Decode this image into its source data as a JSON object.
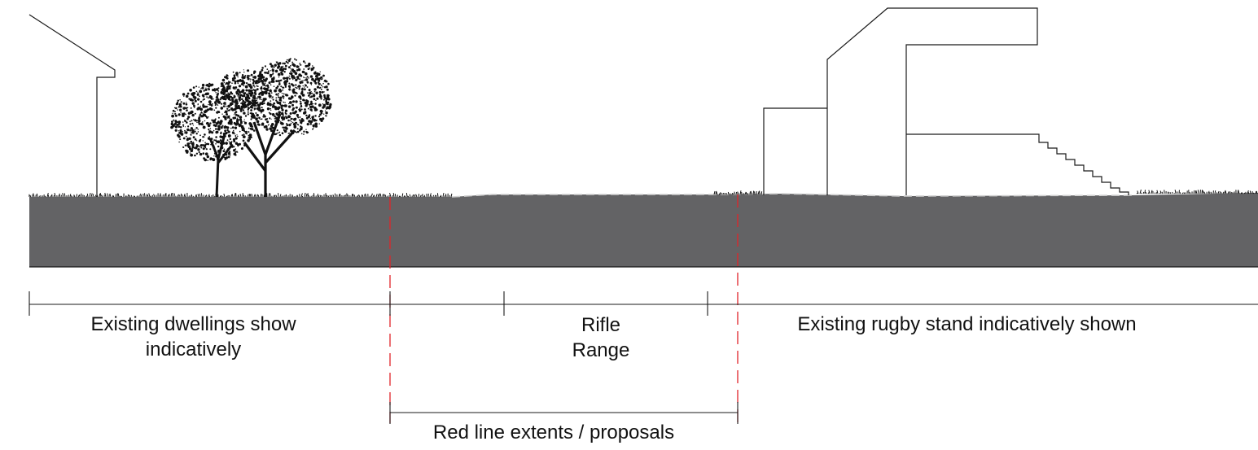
{
  "labels": {
    "dwellings": "Existing dwellings show\nindicatively",
    "rifle_range": "Rifle\nRange",
    "rugby_stand": "Existing rugby stand indicatively shown",
    "red_line": "Red line extents / proposals"
  },
  "colors": {
    "ground": "#636365",
    "line": "#1a1a1a",
    "red_line": "#e0242a",
    "tree": "#111111"
  }
}
